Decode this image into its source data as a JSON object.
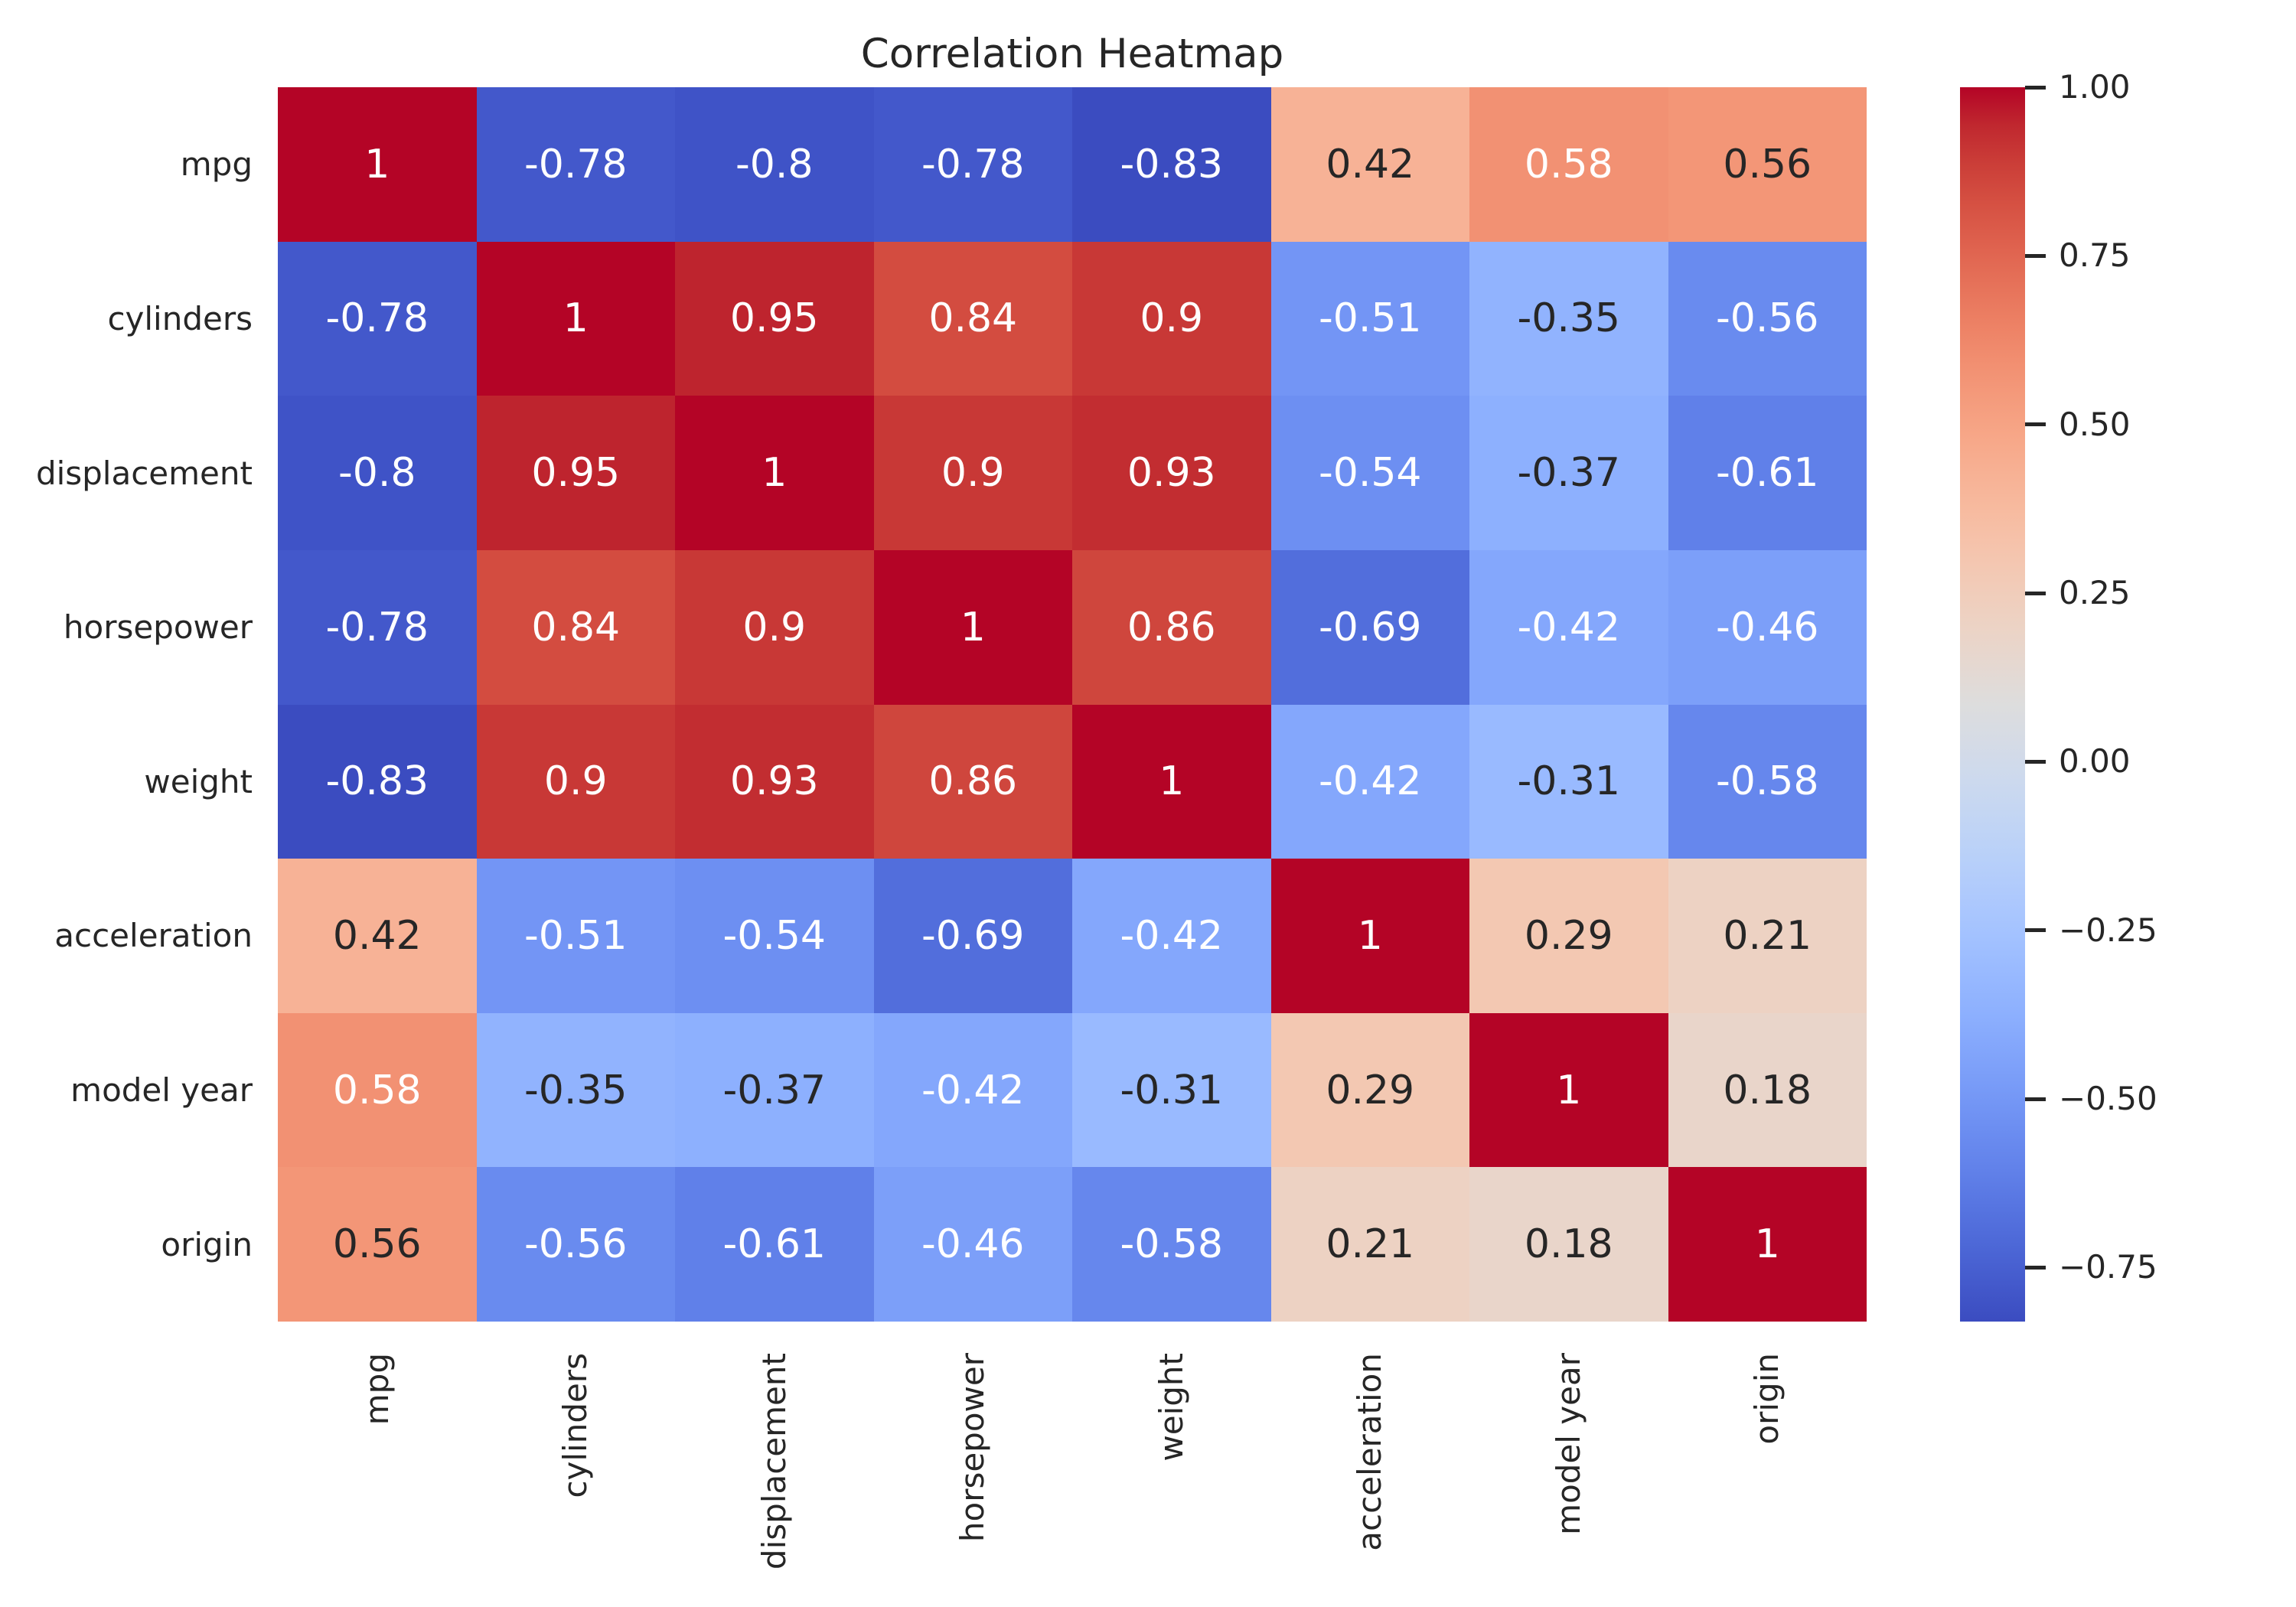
{
  "title": "Correlation Heatmap",
  "colors": {
    "background": "#ffffff",
    "vmin_color": "#3b4cc0",
    "mid_color": "#dddcdc",
    "vmax_color": "#b40426",
    "annot_light": "#ffffff",
    "annot_dark": "#262626",
    "tick_text": "#262626"
  },
  "chart_data": {
    "type": "heatmap",
    "title": "Correlation Heatmap",
    "xlabel": "",
    "ylabel": "",
    "grid": false,
    "colormap": "coolwarm",
    "vmin": -0.83,
    "vmax": 1.0,
    "legend_position": "right-colorbar",
    "categories": [
      "mpg",
      "cylinders",
      "displacement",
      "horsepower",
      "weight",
      "acceleration",
      "model year",
      "origin"
    ],
    "matrix": [
      [
        1,
        -0.78,
        -0.8,
        -0.78,
        -0.83,
        0.42,
        0.58,
        0.56
      ],
      [
        -0.78,
        1,
        0.95,
        0.84,
        0.9,
        -0.51,
        -0.35,
        -0.56
      ],
      [
        -0.8,
        0.95,
        1,
        0.9,
        0.93,
        -0.54,
        -0.37,
        -0.61
      ],
      [
        -0.78,
        0.84,
        0.9,
        1,
        0.86,
        -0.69,
        -0.42,
        -0.46
      ],
      [
        -0.83,
        0.9,
        0.93,
        0.86,
        1,
        -0.42,
        -0.31,
        -0.58
      ],
      [
        0.42,
        -0.51,
        -0.54,
        -0.69,
        -0.42,
        1,
        0.29,
        0.21
      ],
      [
        0.58,
        -0.35,
        -0.37,
        -0.42,
        -0.31,
        0.29,
        1,
        0.18
      ],
      [
        0.56,
        -0.56,
        -0.61,
        -0.46,
        -0.58,
        0.21,
        0.18,
        1
      ]
    ],
    "cell_labels": [
      [
        "1",
        "-0.78",
        "-0.8",
        "-0.78",
        "-0.83",
        "0.42",
        "0.58",
        "0.56"
      ],
      [
        "-0.78",
        "1",
        "0.95",
        "0.84",
        "0.9",
        "-0.51",
        "-0.35",
        "-0.56"
      ],
      [
        "-0.8",
        "0.95",
        "1",
        "0.9",
        "0.93",
        "-0.54",
        "-0.37",
        "-0.61"
      ],
      [
        "-0.78",
        "0.84",
        "0.9",
        "1",
        "0.86",
        "-0.69",
        "-0.42",
        "-0.46"
      ],
      [
        "-0.83",
        "0.9",
        "0.93",
        "0.86",
        "1",
        "-0.42",
        "-0.31",
        "-0.58"
      ],
      [
        "0.42",
        "-0.51",
        "-0.54",
        "-0.69",
        "-0.42",
        "1",
        "0.29",
        "0.21"
      ],
      [
        "0.58",
        "-0.35",
        "-0.37",
        "-0.42",
        "-0.31",
        "0.29",
        "1",
        "0.18"
      ],
      [
        "0.56",
        "-0.56",
        "-0.61",
        "-0.46",
        "-0.58",
        "0.21",
        "0.18",
        "1"
      ]
    ],
    "colorbar_ticks": [
      1.0,
      0.75,
      0.5,
      0.25,
      0.0,
      -0.25,
      -0.5,
      -0.75
    ],
    "colorbar_tick_labels": [
      "1.00",
      "0.75",
      "0.50",
      "0.25",
      "0.00",
      "−0.25",
      "−0.50",
      "−0.75"
    ]
  }
}
